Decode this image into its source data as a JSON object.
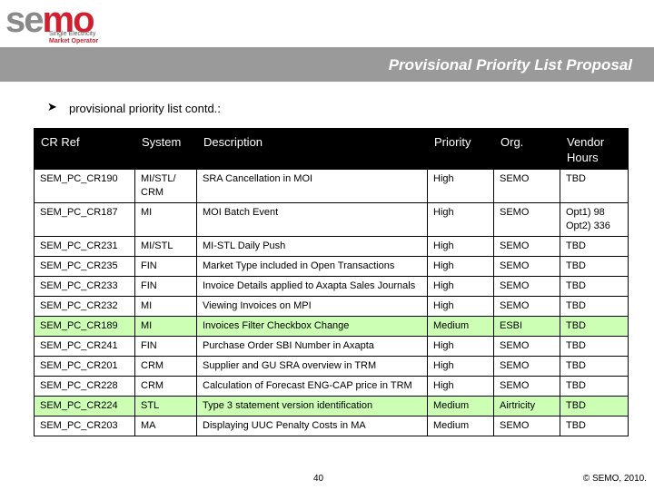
{
  "logo": {
    "word": "semo",
    "tagline_1": "Single Electricity",
    "tagline_2": "Market Operator"
  },
  "header": {
    "title": "Provisional Priority List Proposal",
    "bar_color": "#9a9a9a"
  },
  "intro": {
    "bullet_icon": "arrow-bullet-icon",
    "text": "provisional priority list contd.:"
  },
  "table": {
    "columns": [
      "CR Ref",
      "System",
      "Description",
      "Priority",
      "Org.",
      "Vendor Hours"
    ],
    "highlight_color": "#ccffb3",
    "rows": [
      {
        "ref": "SEM_PC_CR190",
        "system": "MI/STL/ CRM",
        "description": "SRA Cancellation in MOI",
        "priority": "High",
        "org": "SEMO",
        "hours": "TBD",
        "highlight": false
      },
      {
        "ref": "SEM_PC_CR187",
        "system": "MI",
        "description": "MOI Batch Event",
        "priority": "High",
        "org": "SEMO",
        "hours": "Opt1) 98 Opt2) 336",
        "highlight": false
      },
      {
        "ref": "SEM_PC_CR231",
        "system": "MI/STL",
        "description": "MI-STL Daily Push",
        "priority": "High",
        "org": "SEMO",
        "hours": "TBD",
        "highlight": false
      },
      {
        "ref": "SEM_PC_CR235",
        "system": "FIN",
        "description": "Market Type included in Open Transactions",
        "priority": "High",
        "org": "SEMO",
        "hours": "TBD",
        "highlight": false
      },
      {
        "ref": "SEM_PC_CR233",
        "system": "FIN",
        "description": "Invoice Details applied to Axapta Sales Journals",
        "priority": "High",
        "org": "SEMO",
        "hours": "TBD",
        "highlight": false
      },
      {
        "ref": "SEM_PC_CR232",
        "system": "MI",
        "description": "Viewing Invoices on MPI",
        "priority": "High",
        "org": "SEMO",
        "hours": "TBD",
        "highlight": false
      },
      {
        "ref": "SEM_PC_CR189",
        "system": "MI",
        "description": "Invoices Filter Checkbox Change",
        "priority": "Medium",
        "org": "ESBI",
        "hours": "TBD",
        "highlight": true
      },
      {
        "ref": "SEM_PC_CR241",
        "system": "FIN",
        "description": "Purchase Order SBI Number in Axapta",
        "priority": "High",
        "org": "SEMO",
        "hours": "TBD",
        "highlight": false
      },
      {
        "ref": "SEM_PC_CR201",
        "system": "CRM",
        "description": "Supplier and GU SRA overview in TRM",
        "priority": "High",
        "org": "SEMO",
        "hours": "TBD",
        "highlight": false
      },
      {
        "ref": "SEM_PC_CR228",
        "system": "CRM",
        "description": "Calculation of Forecast ENG-CAP price in TRM",
        "priority": "High",
        "org": "SEMO",
        "hours": "TBD",
        "highlight": false
      },
      {
        "ref": "SEM_PC_CR224",
        "system": "STL",
        "description": "Type 3 statement version identification",
        "priority": "Medium",
        "org": "Airtricity",
        "hours": "TBD",
        "highlight": true
      },
      {
        "ref": "SEM_PC_CR203",
        "system": "MA",
        "description": "Displaying UUC Penalty Costs in MA",
        "priority": "Medium",
        "org": "SEMO",
        "hours": "TBD",
        "highlight": false
      }
    ]
  },
  "footer": {
    "page_number": "40",
    "copyright": "© SEMO, 2010."
  }
}
